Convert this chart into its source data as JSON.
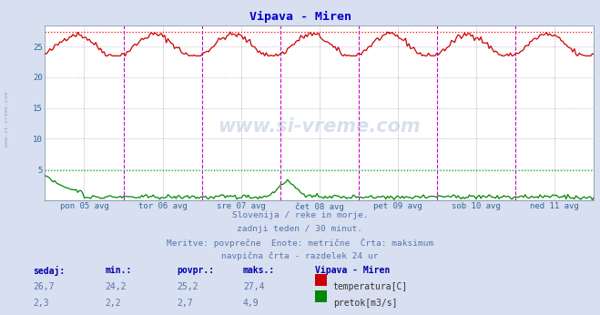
{
  "title": "Vipava - Miren",
  "title_color": "#0000cc",
  "bg_color": "#d8dff0",
  "plot_bg_color": "#ffffff",
  "grid_color": "#aaaacc",
  "watermark": "www.si-vreme.com",
  "subtitle_lines": [
    "Slovenija / reke in morje.",
    "zadnji teden / 30 minut.",
    "Meritve: povprečne  Enote: metrične  Črta: maksimum",
    "navpična črta - razdelek 24 ur"
  ],
  "x_tick_labels": [
    "pon 05 avg",
    "tor 06 avg",
    "sre 07 avg",
    "čet 08 avg",
    "pet 09 avg",
    "sob 10 avg",
    "ned 11 avg"
  ],
  "y_ticks": [
    5,
    10,
    15,
    20,
    25
  ],
  "ylim": [
    0,
    28.5
  ],
  "temp_color": "#cc0000",
  "flow_color": "#008800",
  "vline_color_day": "#cc00cc",
  "vline_color_mid": "#888888",
  "max_temp_line_color": "#ff0000",
  "max_flow_line_color": "#00bb00",
  "temp_max": 27.4,
  "flow_max": 4.9,
  "legend_entries": [
    {
      "label": "temperatura[C]",
      "color": "#cc0000"
    },
    {
      "label": "pretok[m3/s]",
      "color": "#008800"
    }
  ],
  "stats": {
    "headers": [
      "sedaj:",
      "min.:",
      "povpr.:",
      "maks.:"
    ],
    "temp_row": [
      "26,7",
      "24,2",
      "25,2",
      "27,4"
    ],
    "flow_row": [
      "2,3",
      "2,2",
      "2,7",
      "4,9"
    ]
  },
  "n_points": 336,
  "n_days": 7
}
